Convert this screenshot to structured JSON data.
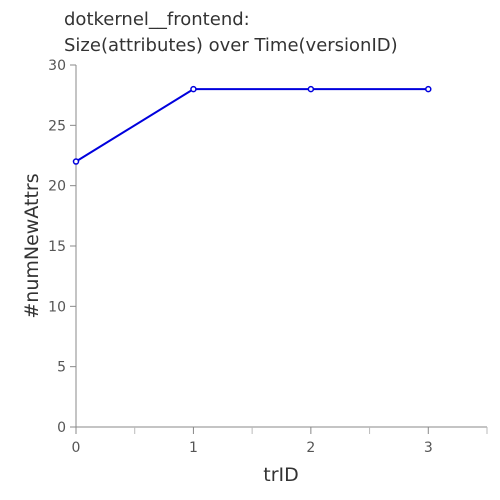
{
  "chart_data": {
    "type": "line",
    "title": [
      "dotkernel__frontend:",
      "Size(attributes) over Time(versionID)"
    ],
    "xlabel": "trID",
    "ylabel": "#numNewAttrs",
    "x": [
      0,
      1,
      2,
      3
    ],
    "series": [
      {
        "values": [
          22,
          28,
          28,
          28
        ],
        "color": "#0000dd"
      }
    ],
    "xlim": [
      0,
      3.5
    ],
    "ylim": [
      0,
      30
    ],
    "xticks": [
      0,
      1,
      2,
      3
    ],
    "xtick_labels": [
      "0",
      "1",
      "2",
      "3"
    ],
    "yticks": [
      0,
      5,
      10,
      15,
      20,
      25,
      30
    ],
    "ytick_labels": [
      "0",
      "5",
      "10",
      "15",
      "20",
      "25",
      "30"
    ],
    "grid": false,
    "legend": "none"
  }
}
